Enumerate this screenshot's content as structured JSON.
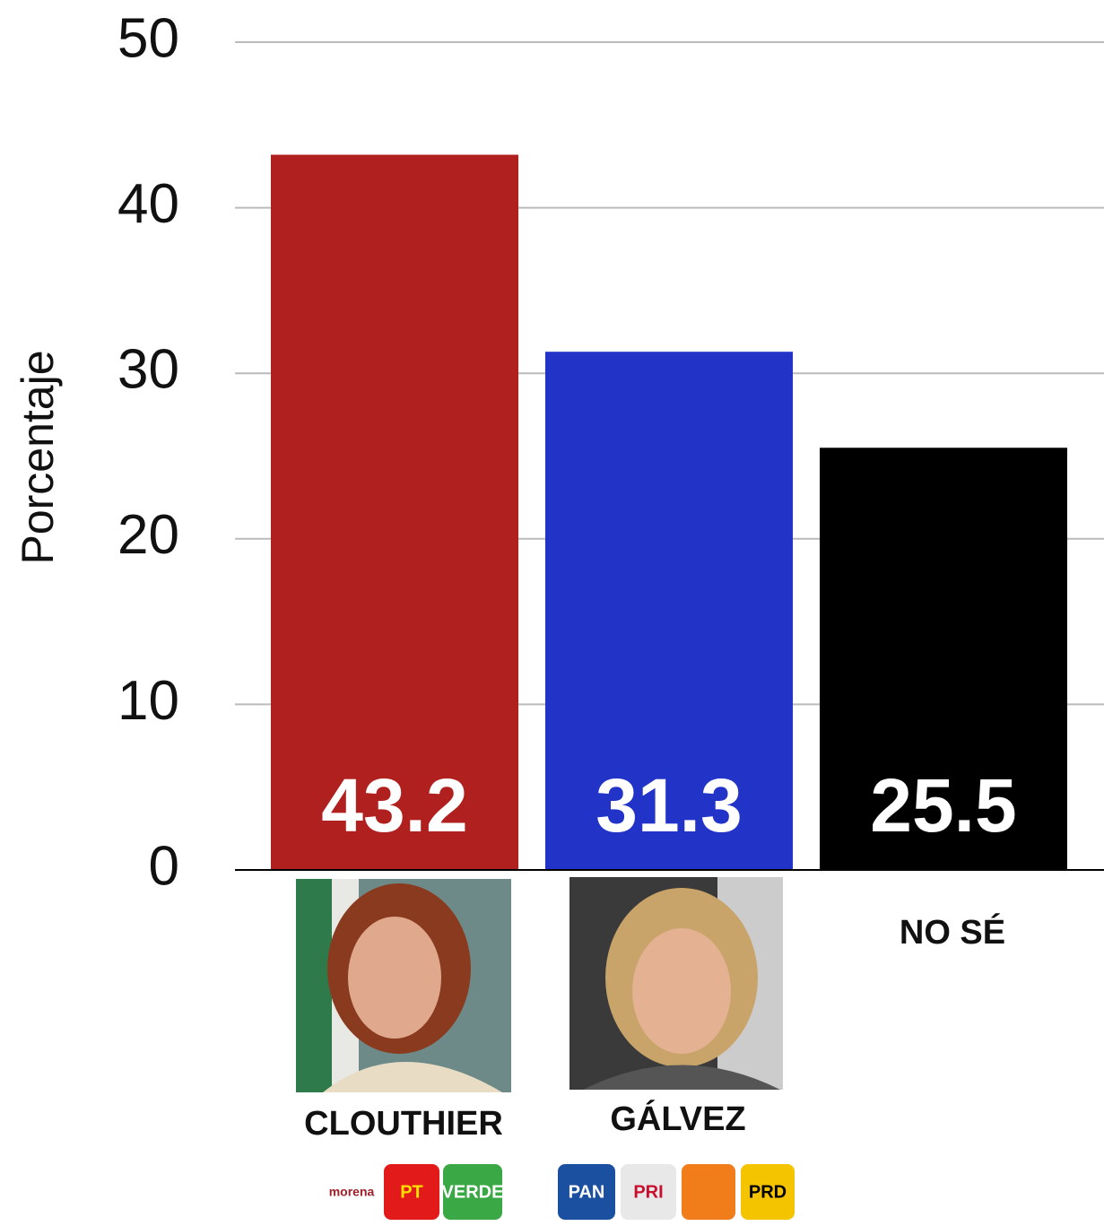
{
  "chart_data": {
    "type": "bar",
    "y_label": "Porcentaje",
    "categories": [
      "CLOUTHIER",
      "GÁLVEZ",
      "NO SÉ"
    ],
    "values": [
      43.2,
      31.3,
      25.5
    ],
    "colors": [
      "#b0201e",
      "#2233c8",
      "#000000"
    ],
    "ylim": [
      0,
      50
    ],
    "yticks": [
      0,
      10,
      20,
      30,
      40,
      50
    ],
    "grid": true,
    "party_logos": [
      [
        "morena",
        "PT",
        "VERDE"
      ],
      [
        "PAN",
        "PRI",
        "PRD"
      ]
    ]
  }
}
